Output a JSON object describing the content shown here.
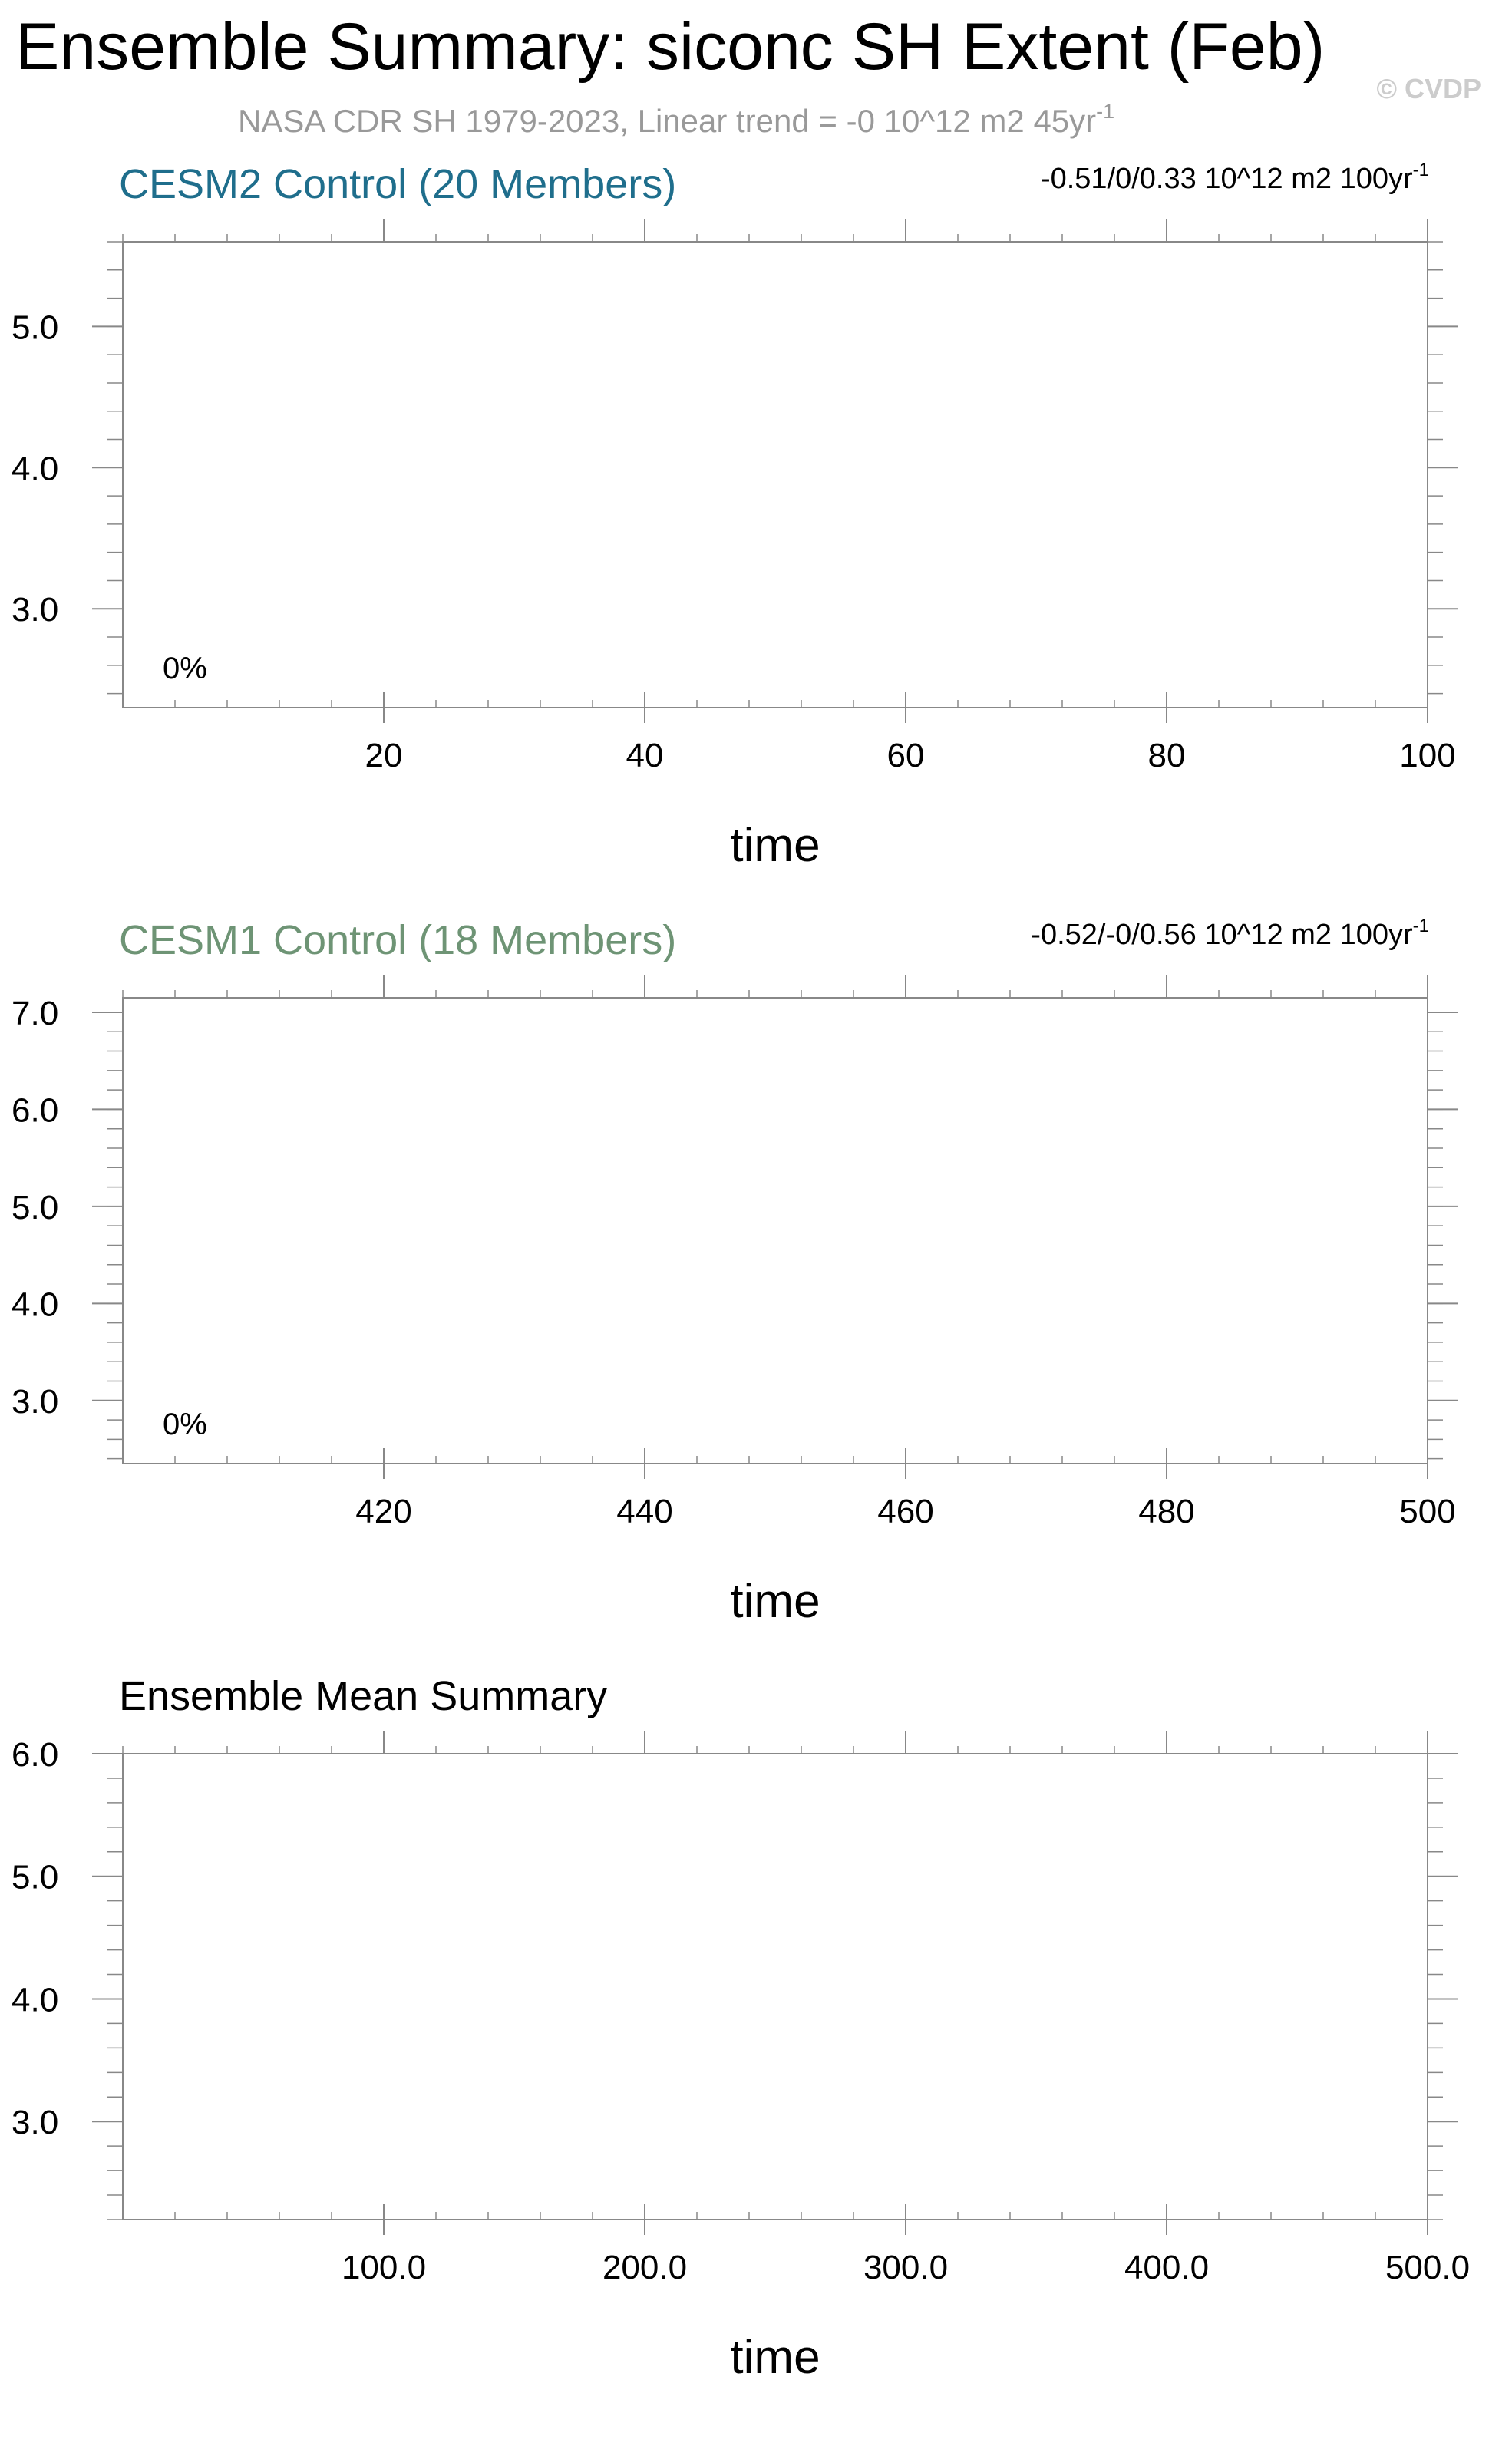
{
  "figure": {
    "title": "Ensemble Summary: siconc SH Extent (Feb)",
    "subtitle": "NASA CDR SH 1979-2023, Linear trend = -0 10^12 m2 45yr",
    "subtitle_superscript": "-1",
    "watermark": "© CVDP",
    "colors": {
      "background": "#ffffff",
      "title": "#000000",
      "subtitle": "#999999",
      "watermark": "#cccccc",
      "axis": "#888888",
      "panel1_title": "#1f6e8c",
      "panel2_title": "#6e9475"
    }
  },
  "chart_data": [
    {
      "type": "line",
      "title": "CESM2 Control (20 Members)",
      "title_color": "#1f6e8c",
      "trend_text": "-0.51/0/0.33 10^12 m2 100yr",
      "trend_superscript": "-1",
      "percent_label": "0%",
      "xlabel": "time",
      "ylabel": "",
      "xlim": [
        0,
        100
      ],
      "ylim": [
        2.3,
        5.6
      ],
      "x_ticks": [
        20,
        40,
        60,
        80,
        100
      ],
      "x_tick_labels": [
        "20",
        "40",
        "60",
        "80",
        "100"
      ],
      "x_minor_step": 4,
      "y_ticks": [
        3.0,
        4.0,
        5.0
      ],
      "y_tick_labels": [
        "3.0",
        "4.0",
        "5.0"
      ],
      "y_minor_step": 0.2,
      "grid": false,
      "series": []
    },
    {
      "type": "line",
      "title": "CESM1 Control (18 Members)",
      "title_color": "#6e9475",
      "trend_text": "-0.52/-0/0.56 10^12 m2 100yr",
      "trend_superscript": "-1",
      "percent_label": "0%",
      "xlabel": "time",
      "ylabel": "",
      "xlim": [
        400,
        500
      ],
      "ylim": [
        2.35,
        7.15
      ],
      "x_ticks": [
        420,
        440,
        460,
        480,
        500
      ],
      "x_tick_labels": [
        "420",
        "440",
        "460",
        "480",
        "500"
      ],
      "x_minor_step": 4,
      "y_ticks": [
        3.0,
        4.0,
        5.0,
        6.0,
        7.0
      ],
      "y_tick_labels": [
        "3.0",
        "4.0",
        "5.0",
        "6.0",
        "7.0"
      ],
      "y_minor_step": 0.2,
      "grid": false,
      "series": []
    },
    {
      "type": "line",
      "title": "Ensemble Mean Summary",
      "title_color": "#000000",
      "trend_text": "",
      "trend_superscript": "",
      "percent_label": "",
      "xlabel": "time",
      "ylabel": "",
      "xlim": [
        0,
        500
      ],
      "ylim": [
        2.2,
        6.0
      ],
      "x_ticks": [
        100.0,
        200.0,
        300.0,
        400.0,
        500.0
      ],
      "x_tick_labels": [
        "100.0",
        "200.0",
        "300.0",
        "400.0",
        "500.0"
      ],
      "x_minor_step": 20,
      "y_ticks": [
        3.0,
        4.0,
        5.0,
        6.0
      ],
      "y_tick_labels": [
        "3.0",
        "4.0",
        "5.0",
        "6.0"
      ],
      "y_minor_step": 0.2,
      "grid": false,
      "series": []
    }
  ]
}
